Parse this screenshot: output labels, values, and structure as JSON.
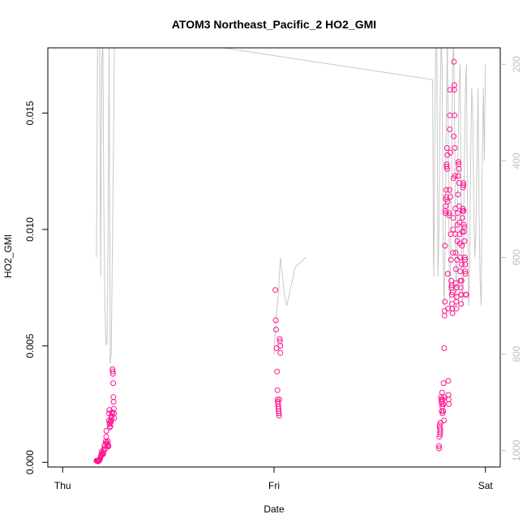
{
  "chart_data": {
    "type": "scatter",
    "title": "ATOM3 Northeast_Pacific_2 HO2_GMI",
    "xlabel": "Date",
    "ylabel": "HO2_GMI",
    "x_ticks": [
      "Thu",
      "Fri",
      "Sat"
    ],
    "y_ticks": [
      "0.000",
      "0.005",
      "0.010",
      "0.015"
    ],
    "y_tick_values": [
      0.0,
      0.005,
      0.01,
      0.015
    ],
    "ylim": [
      -0.0002,
      0.0178
    ],
    "right_axis_ticks": [
      "200",
      "400",
      "600",
      "800",
      "1000"
    ],
    "right_axis_values": [
      200,
      400,
      600,
      800,
      1000
    ],
    "right_axis_range_reversed": [
      1034,
      166
    ],
    "grid": false,
    "colors": {
      "points": "#ff1493",
      "pressure_line": "#c8c8c8",
      "right_axis": "#bebebe",
      "axis": "#000000"
    },
    "series": [
      {
        "marker": "open-circle",
        "points": [
          [
            0.16,
            7e-05
          ],
          [
            0.162,
            6e-05
          ],
          [
            0.164,
            7e-05
          ],
          [
            0.166,
            5e-05
          ],
          [
            0.168,
            4e-05
          ],
          [
            0.17,
            6e-05
          ],
          [
            0.172,
            8e-05
          ],
          [
            0.174,
            9e-05
          ],
          [
            0.176,
            0.00012
          ],
          [
            0.178,
            0.00018
          ],
          [
            0.18,
            0.00025
          ],
          [
            0.182,
            0.0003
          ],
          [
            0.184,
            0.00045
          ],
          [
            0.186,
            0.00035
          ],
          [
            0.188,
            0.0004
          ],
          [
            0.19,
            0.00038
          ],
          [
            0.192,
            0.00035
          ],
          [
            0.194,
            0.00055
          ],
          [
            0.196,
            0.0005
          ],
          [
            0.198,
            0.0007
          ],
          [
            0.2,
            0.00075
          ],
          [
            0.202,
            0.0006
          ],
          [
            0.204,
            0.0009
          ],
          [
            0.206,
            0.0011
          ],
          [
            0.207,
            0.00135
          ],
          [
            0.208,
            0.00085
          ],
          [
            0.21,
            0.0008
          ],
          [
            0.212,
            0.00075
          ],
          [
            0.214,
            0.0009
          ],
          [
            0.216,
            0.00072
          ],
          [
            0.217,
            0.00068
          ],
          [
            0.219,
            0.0018
          ],
          [
            0.22,
            0.0021
          ],
          [
            0.221,
            0.00225
          ],
          [
            0.222,
            0.00165
          ],
          [
            0.223,
            0.0015
          ],
          [
            0.224,
            0.0017
          ],
          [
            0.226,
            0.00155
          ],
          [
            0.228,
            0.0018
          ],
          [
            0.229,
            0.00175
          ],
          [
            0.231,
            0.002
          ],
          [
            0.232,
            0.0019
          ],
          [
            0.234,
            0.0021
          ],
          [
            0.235,
            0.00215
          ],
          [
            0.236,
            0.004
          ],
          [
            0.237,
            0.0039
          ],
          [
            0.238,
            0.0038
          ],
          [
            0.239,
            0.0034
          ],
          [
            0.24,
            0.0028
          ],
          [
            0.241,
            0.0026
          ],
          [
            0.242,
            0.0023
          ],
          [
            0.243,
            0.0021
          ],
          [
            0.244,
            0.0019
          ],
          [
            1.006,
            0.0074
          ],
          [
            1.008,
            0.0061
          ],
          [
            1.01,
            0.0057
          ],
          [
            1.012,
            0.0049
          ],
          [
            1.014,
            0.0039
          ],
          [
            1.016,
            0.0031
          ],
          [
            1.017,
            0.0027
          ],
          [
            1.018,
            0.0026
          ],
          [
            1.019,
            0.0025
          ],
          [
            1.02,
            0.0024
          ],
          [
            1.021,
            0.0023
          ],
          [
            1.022,
            0.0022
          ],
          [
            1.023,
            0.0021
          ],
          [
            1.024,
            0.002
          ],
          [
            1.025,
            0.0027
          ],
          [
            1.027,
            0.0053
          ],
          [
            1.028,
            0.0052
          ],
          [
            1.029,
            0.005
          ],
          [
            1.03,
            0.0047
          ],
          [
            1.78,
            0.0007
          ],
          [
            1.781,
            0.0006
          ],
          [
            1.782,
            0.0011
          ],
          [
            1.783,
            0.0016
          ],
          [
            1.784,
            0.0015
          ],
          [
            1.785,
            0.0013
          ],
          [
            1.786,
            0.0012
          ],
          [
            1.787,
            0.0014
          ],
          [
            1.788,
            0.0017
          ],
          [
            1.79,
            0.0028
          ],
          [
            1.791,
            0.0027
          ],
          [
            1.792,
            0.0026
          ],
          [
            1.793,
            0.0022
          ],
          [
            1.794,
            0.0025
          ],
          [
            1.795,
            0.003
          ],
          [
            1.796,
            0.0024
          ],
          [
            1.797,
            0.0021
          ],
          [
            1.798,
            0.0027
          ],
          [
            1.8,
            0.0022
          ],
          [
            1.801,
            0.0025
          ],
          [
            1.802,
            0.0034
          ],
          [
            1.803,
            0.0028
          ],
          [
            1.804,
            0.0018
          ],
          [
            1.805,
            0.0049
          ],
          [
            1.806,
            0.0063
          ],
          [
            1.807,
            0.0065
          ],
          [
            1.808,
            0.0069
          ],
          [
            1.809,
            0.0093
          ],
          [
            1.81,
            0.0108
          ],
          [
            1.811,
            0.0107
          ],
          [
            1.812,
            0.011
          ],
          [
            1.813,
            0.0113
          ],
          [
            1.814,
            0.0114
          ],
          [
            1.815,
            0.0117
          ],
          [
            1.816,
            0.0127
          ],
          [
            1.817,
            0.0128
          ],
          [
            1.818,
            0.0135
          ],
          [
            1.819,
            0.0126
          ],
          [
            1.82,
            0.0132
          ],
          [
            1.821,
            0.0112
          ],
          [
            1.822,
            0.0081
          ],
          [
            1.823,
            0.0066
          ],
          [
            1.824,
            0.0035
          ],
          [
            1.825,
            0.0029
          ],
          [
            1.826,
            0.0027
          ],
          [
            1.827,
            0.0025
          ],
          [
            1.828,
            0.0106
          ],
          [
            1.829,
            0.0107
          ],
          [
            1.83,
            0.0117
          ],
          [
            1.831,
            0.0143
          ],
          [
            1.832,
            0.0149
          ],
          [
            1.833,
            0.016
          ],
          [
            1.834,
            0.0133
          ],
          [
            1.835,
            0.0114
          ],
          [
            1.836,
            0.0098
          ],
          [
            1.837,
            0.0087
          ],
          [
            1.838,
            0.0078
          ],
          [
            1.839,
            0.0075
          ],
          [
            1.84,
            0.0076
          ],
          [
            1.841,
            0.0072
          ],
          [
            1.842,
            0.0068
          ],
          [
            1.843,
            0.0066
          ],
          [
            1.844,
            0.0064
          ],
          [
            1.845,
            0.0073
          ],
          [
            1.846,
            0.009
          ],
          [
            1.847,
            0.01
          ],
          [
            1.848,
            0.0105
          ],
          [
            1.849,
            0.0122
          ],
          [
            1.85,
            0.014
          ],
          [
            1.851,
            0.0172
          ],
          [
            1.852,
            0.016
          ],
          [
            1.853,
            0.0162
          ],
          [
            1.854,
            0.0149
          ],
          [
            1.855,
            0.0135
          ],
          [
            1.856,
            0.0123
          ],
          [
            1.857,
            0.0109
          ],
          [
            1.858,
            0.0098
          ],
          [
            1.859,
            0.009
          ],
          [
            1.86,
            0.0083
          ],
          [
            1.861,
            0.0077
          ],
          [
            1.862,
            0.0069
          ],
          [
            1.863,
            0.0066
          ],
          [
            1.864,
            0.0071
          ],
          [
            1.865,
            0.0075
          ],
          [
            1.866,
            0.0087
          ],
          [
            1.867,
            0.0095
          ],
          [
            1.868,
            0.0102
          ],
          [
            1.869,
            0.0107
          ],
          [
            1.87,
            0.0115
          ],
          [
            1.871,
            0.0123
          ],
          [
            1.872,
            0.0129
          ],
          [
            1.873,
            0.0128
          ],
          [
            1.874,
            0.0126
          ],
          [
            1.875,
            0.012
          ],
          [
            1.876,
            0.011
          ],
          [
            1.877,
            0.0103
          ],
          [
            1.878,
            0.0098
          ],
          [
            1.879,
            0.0094
          ],
          [
            1.88,
            0.0088
          ],
          [
            1.881,
            0.0082
          ],
          [
            1.882,
            0.0078
          ],
          [
            1.883,
            0.0075
          ],
          [
            1.884,
            0.0072
          ],
          [
            1.885,
            0.0068
          ],
          [
            1.886,
            0.0072
          ],
          [
            1.887,
            0.0078
          ],
          [
            1.888,
            0.0085
          ],
          [
            1.889,
            0.0093
          ],
          [
            1.89,
            0.0099
          ],
          [
            1.891,
            0.0105
          ],
          [
            1.892,
            0.0108
          ],
          [
            1.893,
            0.0109
          ],
          [
            1.894,
            0.0118
          ],
          [
            1.895,
            0.012
          ],
          [
            1.896,
            0.0119
          ],
          [
            1.897,
            0.0108
          ],
          [
            1.898,
            0.0102
          ],
          [
            1.899,
            0.0099
          ],
          [
            1.9,
            0.0101
          ],
          [
            1.901,
            0.0095
          ],
          [
            1.902,
            0.0088
          ],
          [
            1.903,
            0.0087
          ],
          [
            1.904,
            0.0085
          ],
          [
            1.905,
            0.0082
          ],
          [
            1.906,
            0.0081
          ],
          [
            1.907,
            0.0072
          ],
          [
            1.908,
            0.0072
          ],
          [
            1.909,
            0.0072
          ]
        ]
      }
    ],
    "pressure_line": [
      [
        0.16,
        600
      ],
      [
        0.165,
        150
      ],
      [
        0.175,
        150
      ],
      [
        0.18,
        640
      ],
      [
        0.185,
        200
      ],
      [
        0.19,
        150
      ],
      [
        0.195,
        500
      ],
      [
        0.2,
        700
      ],
      [
        0.205,
        780
      ],
      [
        0.21,
        780
      ],
      [
        0.215,
        550
      ],
      [
        0.22,
        150
      ],
      [
        0.225,
        820
      ],
      [
        0.23,
        800
      ],
      [
        0.235,
        600
      ],
      [
        0.24,
        400
      ],
      [
        0.245,
        150
      ],
      [
        0.76,
        166
      ],
      [
        1.75,
        232
      ],
      [
        1.754,
        600
      ],
      [
        1.756,
        640
      ],
      [
        1.76,
        350
      ],
      [
        1.765,
        150
      ],
      [
        1.77,
        150
      ],
      [
        1.775,
        640
      ],
      [
        1.78,
        550
      ],
      [
        1.785,
        300
      ],
      [
        1.79,
        150
      ],
      [
        1.795,
        200
      ],
      [
        1.8,
        600
      ],
      [
        1.805,
        700
      ],
      [
        1.81,
        550
      ],
      [
        1.815,
        300
      ],
      [
        1.82,
        150
      ],
      [
        1.825,
        400
      ],
      [
        1.83,
        700
      ],
      [
        1.835,
        650
      ],
      [
        1.84,
        400
      ],
      [
        1.845,
        200
      ],
      [
        1.85,
        150
      ],
      [
        1.855,
        350
      ],
      [
        1.86,
        700
      ],
      [
        1.865,
        650
      ],
      [
        1.87,
        400
      ],
      [
        1.875,
        250
      ],
      [
        1.88,
        200
      ],
      [
        1.885,
        500
      ],
      [
        1.89,
        700
      ],
      [
        1.895,
        650
      ],
      [
        1.9,
        400
      ],
      [
        1.905,
        250
      ],
      [
        1.91,
        200
      ],
      [
        1.915,
        500
      ],
      [
        1.92,
        700
      ],
      [
        1.925,
        650
      ],
      [
        1.93,
        400
      ],
      [
        1.935,
        250
      ],
      [
        1.94,
        300
      ],
      [
        1.945,
        500
      ],
      [
        1.95,
        600
      ],
      [
        1.955,
        550
      ],
      [
        1.96,
        400
      ],
      [
        1.965,
        250
      ],
      [
        1.97,
        500
      ],
      [
        1.975,
        650
      ],
      [
        1.98,
        700
      ],
      [
        1.985,
        400
      ],
      [
        1.99,
        250
      ],
      [
        1.995,
        400
      ],
      [
        2.0,
        200
      ]
    ],
    "pressure_line_fri_segment": [
      [
        1.0,
        800
      ],
      [
        1.01,
        720
      ],
      [
        1.02,
        680
      ],
      [
        1.03,
        600
      ],
      [
        1.04,
        640
      ],
      [
        1.05,
        680
      ],
      [
        1.06,
        700
      ],
      [
        1.07,
        680
      ],
      [
        1.08,
        660
      ],
      [
        1.09,
        640
      ],
      [
        1.1,
        620
      ],
      [
        1.15,
        600
      ]
    ]
  }
}
